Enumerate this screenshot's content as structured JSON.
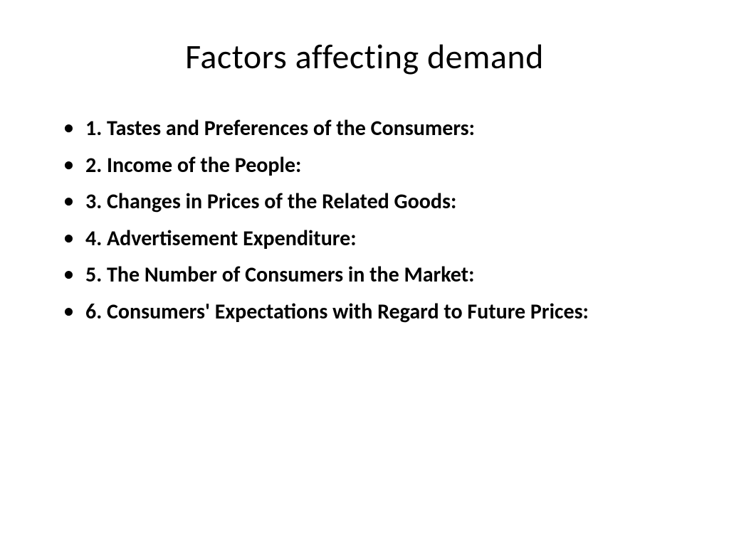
{
  "slide": {
    "title": "Factors affecting demand",
    "title_fontsize": 48,
    "title_fontweight": 400,
    "title_color": "#000000",
    "background_color": "#ffffff",
    "bullets": [
      "1. Tastes and Preferences of the Consumers:",
      "2. Income of the People:",
      "3. Changes in Prices of the Related Goods:",
      "4. Advertisement Expenditure:",
      "5. The Number of Consumers in the Market:",
      "6. Consumers' Expectations with Regard to Future Prices:"
    ],
    "bullet_fontsize": 30,
    "bullet_fontweight": 700,
    "bullet_color": "#000000",
    "bullet_marker": "•"
  }
}
